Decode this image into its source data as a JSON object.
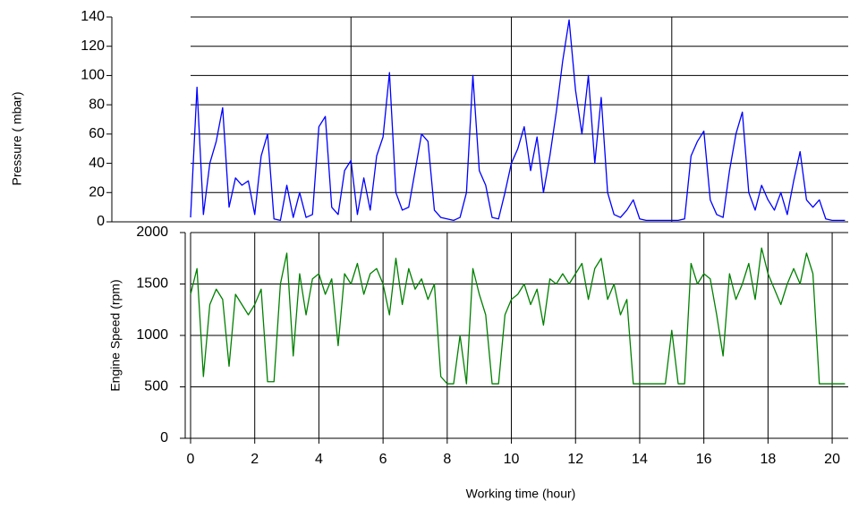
{
  "chart_data": [
    {
      "type": "line",
      "y_label": "Pressure ( mbar)",
      "x": [
        0,
        0.2,
        0.4,
        0.6,
        0.8,
        1,
        1.2,
        1.4,
        1.6,
        1.8,
        2,
        2.2,
        2.4,
        2.6,
        2.8,
        3,
        3.2,
        3.4,
        3.6,
        3.8,
        4,
        4.2,
        4.4,
        4.6,
        4.8,
        5,
        5.2,
        5.4,
        5.6,
        5.8,
        6,
        6.2,
        6.4,
        6.6,
        6.8,
        7,
        7.2,
        7.4,
        7.6,
        7.8,
        8,
        8.2,
        8.4,
        8.6,
        8.8,
        9,
        9.2,
        9.4,
        9.6,
        9.8,
        10,
        10.2,
        10.4,
        10.6,
        10.8,
        11,
        11.2,
        11.4,
        11.6,
        11.8,
        12,
        12.2,
        12.4,
        12.6,
        12.8,
        13,
        13.2,
        13.4,
        13.6,
        13.8,
        14,
        14.2,
        14.4,
        14.6,
        14.8,
        15,
        15.2,
        15.4,
        15.6,
        15.8,
        16,
        16.2,
        16.4,
        16.6,
        16.8,
        17,
        17.2,
        17.4,
        17.6,
        17.8,
        18,
        18.2,
        18.4,
        18.6,
        18.8,
        19,
        19.2,
        19.4,
        19.6,
        19.8,
        20,
        20.2,
        20.4
      ],
      "series": [
        {
          "name": "Pressure",
          "color": "#0000ff",
          "values": [
            3,
            92,
            5,
            40,
            55,
            78,
            10,
            30,
            25,
            28,
            5,
            45,
            60,
            2,
            1,
            25,
            3,
            20,
            3,
            5,
            65,
            72,
            10,
            5,
            35,
            42,
            5,
            30,
            8,
            45,
            58,
            102,
            20,
            8,
            10,
            35,
            60,
            55,
            8,
            3,
            2,
            1,
            3,
            20,
            100,
            35,
            25,
            3,
            2,
            20,
            40,
            50,
            65,
            35,
            58,
            20,
            45,
            75,
            110,
            138,
            90,
            60,
            100,
            40,
            85,
            20,
            5,
            3,
            8,
            15,
            2,
            1,
            1,
            1,
            1,
            1,
            1,
            2,
            45,
            55,
            62,
            15,
            5,
            3,
            35,
            60,
            75,
            20,
            8,
            25,
            15,
            8,
            20,
            5,
            28,
            48,
            15,
            10,
            15,
            2,
            1,
            1,
            1
          ]
        }
      ],
      "xlim": [
        0,
        20.5
      ],
      "xticks": [
        5,
        10,
        15
      ],
      "ylim": [
        0,
        140
      ],
      "yticks": [
        0,
        20,
        40,
        60,
        80,
        100,
        120,
        140
      ],
      "grid": true
    },
    {
      "type": "line",
      "x_label": "Working time (hour)",
      "y_label": "Engine Speed (rpm)",
      "x": [
        0,
        0.2,
        0.4,
        0.6,
        0.8,
        1,
        1.2,
        1.4,
        1.6,
        1.8,
        2,
        2.2,
        2.4,
        2.6,
        2.8,
        3,
        3.2,
        3.4,
        3.6,
        3.8,
        4,
        4.2,
        4.4,
        4.6,
        4.8,
        5,
        5.2,
        5.4,
        5.6,
        5.8,
        6,
        6.2,
        6.4,
        6.6,
        6.8,
        7,
        7.2,
        7.4,
        7.6,
        7.8,
        8,
        8.2,
        8.4,
        8.6,
        8.8,
        9,
        9.2,
        9.4,
        9.6,
        9.8,
        10,
        10.2,
        10.4,
        10.6,
        10.8,
        11,
        11.2,
        11.4,
        11.6,
        11.8,
        12,
        12.2,
        12.4,
        12.6,
        12.8,
        13,
        13.2,
        13.4,
        13.6,
        13.8,
        14,
        14.2,
        14.4,
        14.6,
        14.8,
        15,
        15.2,
        15.4,
        15.6,
        15.8,
        16,
        16.2,
        16.4,
        16.6,
        16.8,
        17,
        17.2,
        17.4,
        17.6,
        17.8,
        18,
        18.2,
        18.4,
        18.6,
        18.8,
        19,
        19.2,
        19.4,
        19.6,
        19.8,
        20,
        20.2,
        20.4
      ],
      "series": [
        {
          "name": "Engine Speed",
          "color": "#008000",
          "values": [
            1400,
            1650,
            600,
            1300,
            1450,
            1350,
            700,
            1400,
            1300,
            1200,
            1300,
            1450,
            550,
            550,
            1500,
            1800,
            800,
            1600,
            1200,
            1550,
            1600,
            1400,
            1550,
            900,
            1600,
            1500,
            1700,
            1400,
            1600,
            1650,
            1500,
            1200,
            1750,
            1300,
            1650,
            1450,
            1550,
            1350,
            1500,
            600,
            530,
            530,
            1000,
            530,
            1650,
            1400,
            1200,
            530,
            530,
            1200,
            1350,
            1400,
            1500,
            1300,
            1450,
            1100,
            1550,
            1500,
            1600,
            1500,
            1600,
            1700,
            1350,
            1650,
            1750,
            1350,
            1500,
            1200,
            1350,
            530,
            530,
            530,
            530,
            530,
            530,
            1050,
            530,
            530,
            1700,
            1500,
            1600,
            1550,
            1200,
            800,
            1600,
            1350,
            1500,
            1700,
            1350,
            1850,
            1600,
            1450,
            1300,
            1500,
            1650,
            1500,
            1800,
            1600,
            530,
            530,
            530,
            530,
            530
          ]
        }
      ],
      "xlim": [
        0,
        20.5
      ],
      "xticks": [
        0,
        2,
        4,
        6,
        8,
        10,
        12,
        14,
        16,
        18,
        20
      ],
      "ylim": [
        0,
        2000
      ],
      "yticks": [
        0,
        500,
        1000,
        1500,
        2000
      ],
      "grid": true
    }
  ]
}
